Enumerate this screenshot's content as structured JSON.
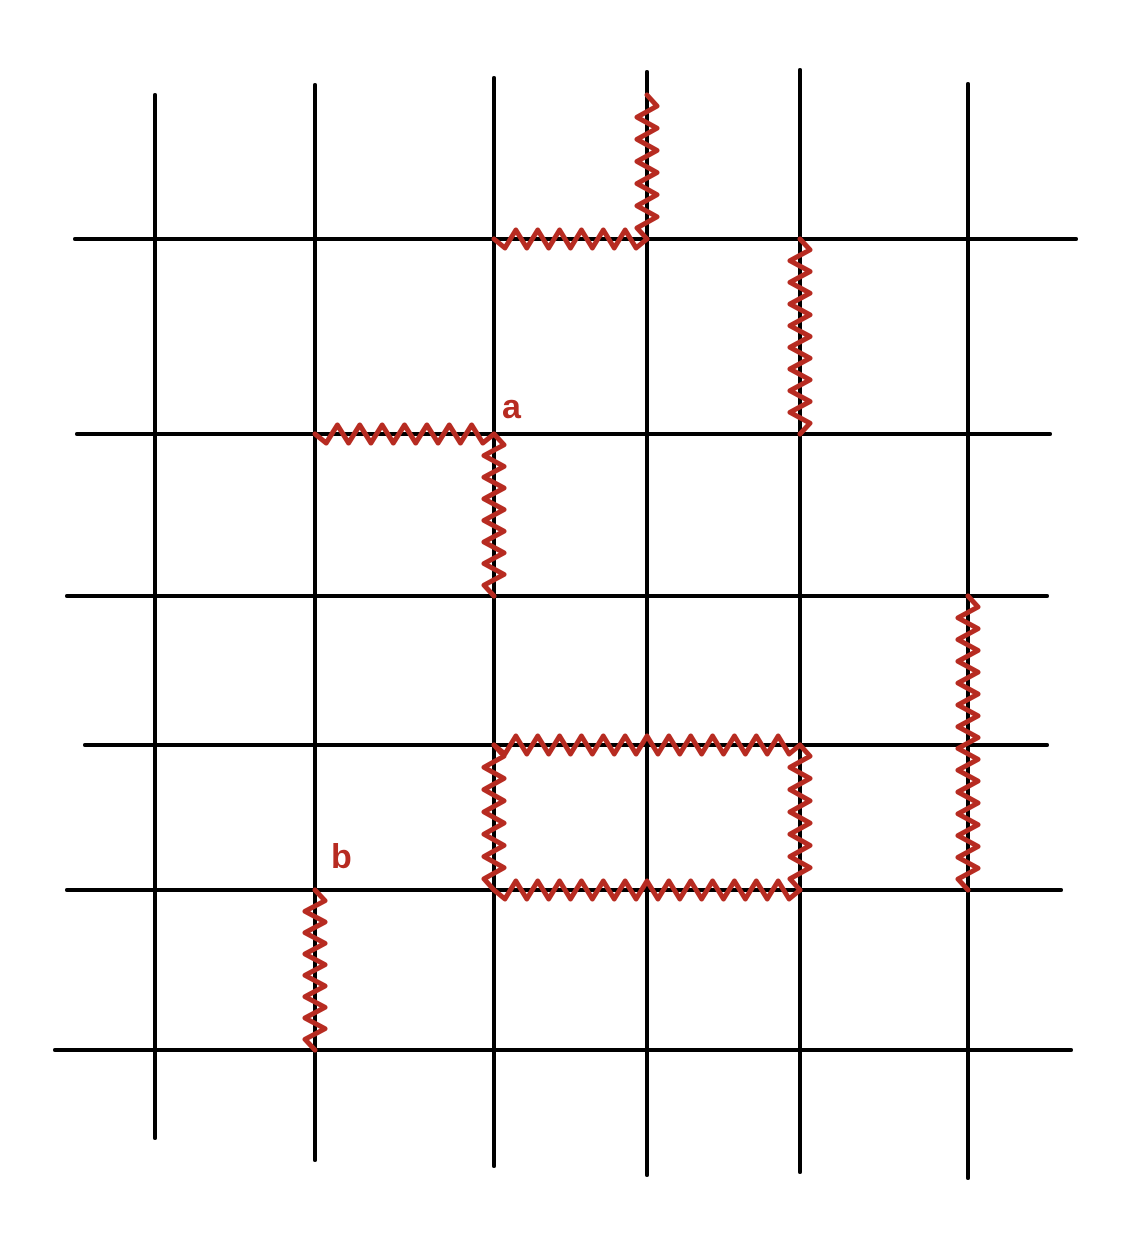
{
  "colors": {
    "grid": "#000000",
    "edge": "#b72b21",
    "background": "#ffffff"
  },
  "labels": {
    "a": "a",
    "b": "b"
  },
  "highlighted_links": [
    {
      "name": "link-top-vertical",
      "from": "c3r0",
      "to": "c3r1",
      "direction": "vertical"
    },
    {
      "name": "link-top-horizontal",
      "from": "c2r1",
      "to": "c3r1",
      "direction": "horizontal"
    },
    {
      "name": "link-right-vertical-upper",
      "from": "c4r1",
      "to": "c4r2",
      "direction": "vertical"
    },
    {
      "name": "link-a-horizontal",
      "from": "c1r2",
      "to": "c2r2",
      "direction": "horizontal"
    },
    {
      "name": "link-a-vertical",
      "from": "c2r2",
      "to": "c2r3",
      "direction": "vertical"
    },
    {
      "name": "link-far-right-vertical",
      "from": "c5r3",
      "to": "c5r5",
      "direction": "vertical"
    },
    {
      "name": "loop-top",
      "from": "c2r4",
      "to": "c4r4",
      "direction": "horizontal"
    },
    {
      "name": "loop-bottom",
      "from": "c2r5",
      "to": "c4r5",
      "direction": "horizontal"
    },
    {
      "name": "loop-left",
      "from": "c2r4",
      "to": "c2r5",
      "direction": "vertical"
    },
    {
      "name": "loop-right",
      "from": "c4r4",
      "to": "c4r5",
      "direction": "vertical"
    },
    {
      "name": "link-b-vertical",
      "from": "c1r5",
      "to": "c1r6",
      "direction": "vertical"
    }
  ]
}
